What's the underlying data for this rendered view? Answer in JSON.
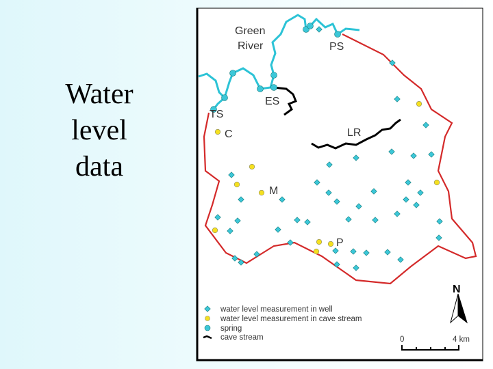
{
  "slide": {
    "title_lines": [
      "Water",
      "level",
      "data"
    ]
  },
  "map": {
    "river_label": [
      "Green",
      "River"
    ],
    "site_labels": [
      "PS",
      "ES",
      "TS",
      "C",
      "LR",
      "M",
      "P"
    ],
    "legend": [
      "water level measurement in well",
      "water level measurement in cave stream",
      "spring",
      "cave stream"
    ],
    "scale": [
      "0",
      "4 km"
    ],
    "north": "N"
  }
}
